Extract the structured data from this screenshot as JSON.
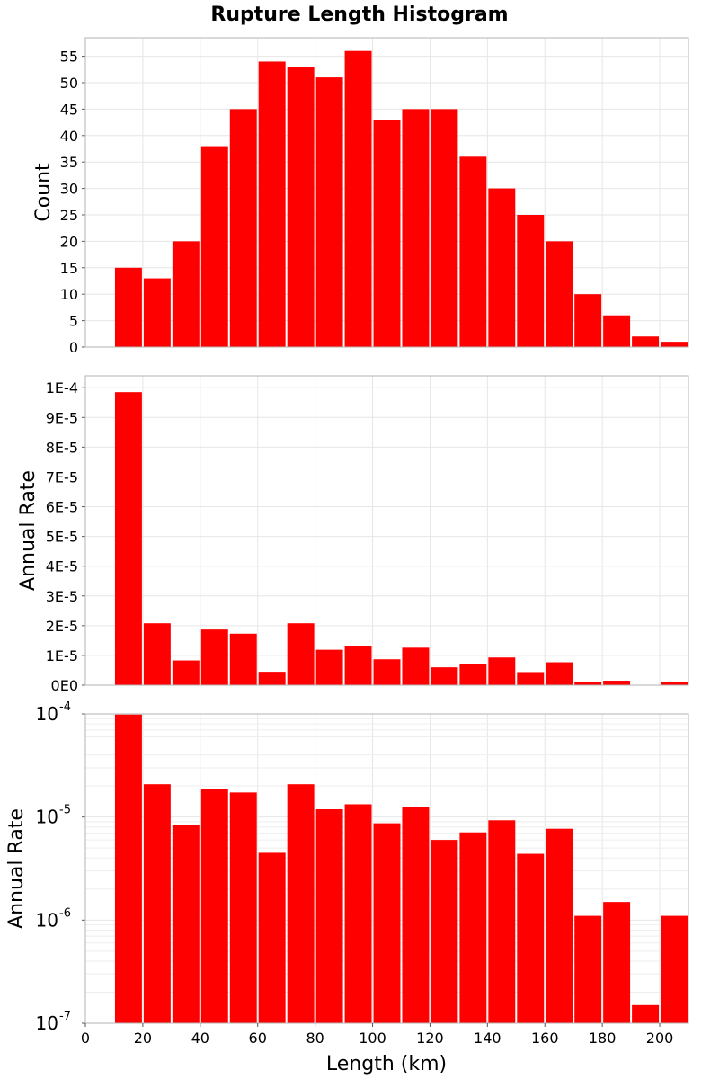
{
  "chart_data": {
    "title": "Rupture Length Histogram",
    "type": "bar",
    "xlabel": "Length (km)",
    "xlim": [
      0,
      210
    ],
    "x_ticks": [
      "0",
      "20",
      "40",
      "60",
      "80",
      "100",
      "120",
      "140",
      "160",
      "180",
      "200"
    ],
    "bin_width": 10,
    "bar_color": "#ff0000",
    "grid": true,
    "panels": [
      {
        "ylabel": "Count",
        "scale": "linear",
        "ylim": [
          0,
          58.5
        ],
        "y_ticks": [
          "0",
          "5",
          "10",
          "15",
          "20",
          "25",
          "30",
          "35",
          "40",
          "45",
          "50",
          "55"
        ],
        "x": [
          15,
          25,
          35,
          45,
          55,
          65,
          75,
          85,
          95,
          105,
          115,
          125,
          135,
          145,
          155,
          165,
          175,
          185,
          195,
          205
        ],
        "values": [
          15,
          13,
          20,
          38,
          45,
          54,
          53,
          51,
          56,
          43,
          45,
          45,
          36,
          30,
          25,
          20,
          10,
          6,
          2,
          1
        ]
      },
      {
        "ylabel": "Annual Rate",
        "scale": "linear",
        "ylim": [
          0,
          0.000104
        ],
        "y_ticks": [
          "0E0",
          "1E-5",
          "2E-5",
          "3E-5",
          "4E-5",
          "5E-5",
          "6E-5",
          "7E-5",
          "8E-5",
          "9E-5",
          "1E-4"
        ],
        "x": [
          15,
          25,
          35,
          45,
          55,
          65,
          75,
          85,
          95,
          105,
          115,
          125,
          135,
          145,
          155,
          165,
          175,
          185,
          195,
          205
        ],
        "values": [
          9.85e-05,
          2.08e-05,
          8.3e-06,
          1.87e-05,
          1.73e-05,
          4.5e-06,
          2.08e-05,
          1.19e-05,
          1.33e-05,
          8.7e-06,
          1.26e-05,
          6e-06,
          7.1e-06,
          9.3e-06,
          4.4e-06,
          7.7e-06,
          1.1e-06,
          1.5e-06,
          1.5e-07,
          1.1e-06
        ]
      },
      {
        "ylabel": "Annual Rate",
        "scale": "log",
        "ylim": [
          1e-07,
          0.0001
        ],
        "y_ticks": [
          {
            "base": "10",
            "exp": "-7"
          },
          {
            "base": "10",
            "exp": "-6"
          },
          {
            "base": "10",
            "exp": "-5"
          },
          {
            "base": "10",
            "exp": "-4"
          }
        ],
        "x": [
          15,
          25,
          35,
          45,
          55,
          65,
          75,
          85,
          95,
          105,
          115,
          125,
          135,
          145,
          155,
          165,
          175,
          185,
          195,
          205
        ],
        "values": [
          9.85e-05,
          2.08e-05,
          8.3e-06,
          1.87e-05,
          1.73e-05,
          4.5e-06,
          2.08e-05,
          1.19e-05,
          1.33e-05,
          8.7e-06,
          1.26e-05,
          6e-06,
          7.1e-06,
          9.3e-06,
          4.4e-06,
          7.7e-06,
          1.1e-06,
          1.5e-06,
          1.5e-07,
          1.1e-06
        ]
      }
    ]
  }
}
